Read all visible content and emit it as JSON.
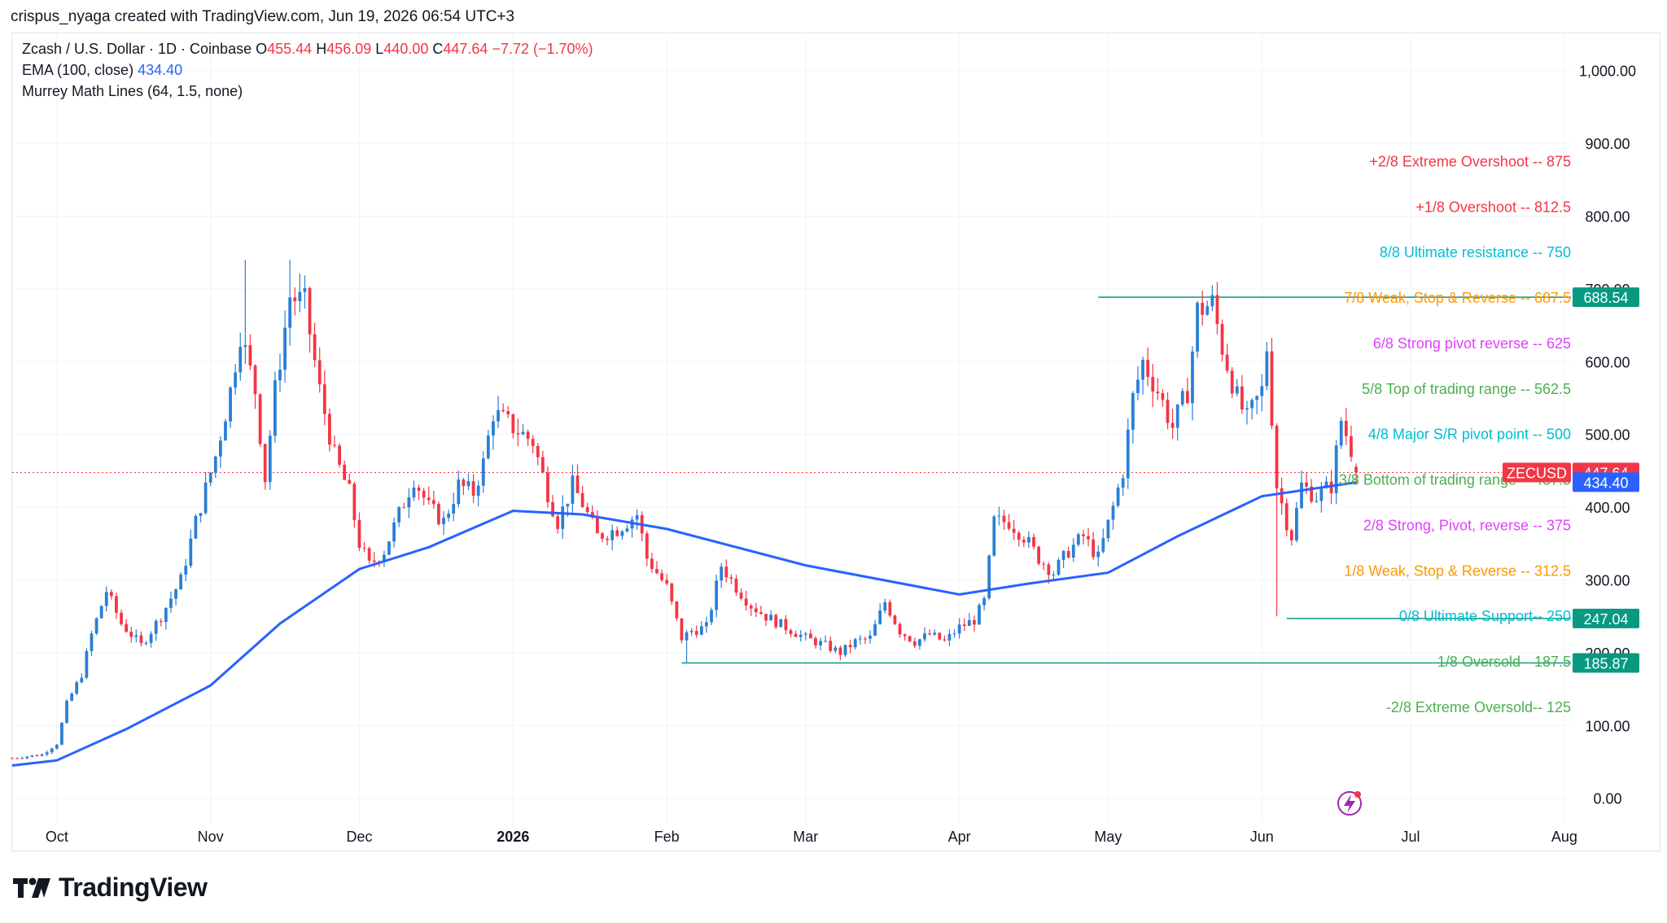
{
  "header": {
    "caption": "crispus_nyaga created with TradingView.com, Jun 19, 2026 06:54 UTC+3"
  },
  "legend": {
    "symbol": "Zcash / U.S. Dollar · 1D · Coinbase",
    "open_label": "O",
    "open": "455.44",
    "high_label": "H",
    "high": "456.09",
    "low_label": "L",
    "low": "440.00",
    "close_label": "C",
    "close": "447.64",
    "change": "−7.72 (−1.70%)",
    "ema_label": "EMA (100, close)",
    "ema_value": "434.40",
    "murrey_label": "Murrey Math Lines (64, 1.5, none)"
  },
  "brand": {
    "name": "TradingView"
  },
  "colors": {
    "up": "#2a7fd4",
    "down": "#f23645",
    "ema": "#2962ff",
    "teal": "#089981",
    "grid": "#f0f3fa",
    "axis_text": "#131722"
  },
  "chart_data": {
    "type": "candlestick",
    "title": "Zcash / U.S. Dollar · 1D · Coinbase",
    "ylim": [
      -35,
      1050
    ],
    "y_ticks": [
      0,
      100,
      200,
      300,
      400,
      500,
      600,
      700,
      800,
      900,
      1000
    ],
    "y_tick_labels": [
      "0.00",
      "100.00",
      "200.00",
      "300.00",
      "400.00",
      "500.00",
      "600.00",
      "700.00",
      "800.00",
      "900.00",
      "1,000.00"
    ],
    "x_labels": [
      {
        "date": "2025-10-01",
        "label": "Oct"
      },
      {
        "date": "2025-11-01",
        "label": "Nov"
      },
      {
        "date": "2025-12-01",
        "label": "Dec"
      },
      {
        "date": "2026-01-01",
        "label": "2026"
      },
      {
        "date": "2026-02-01",
        "label": "Feb"
      },
      {
        "date": "2026-03-01",
        "label": "Mar"
      },
      {
        "date": "2026-04-01",
        "label": "Apr"
      },
      {
        "date": "2026-05-01",
        "label": "May"
      },
      {
        "date": "2026-06-01",
        "label": "Jun"
      },
      {
        "date": "2026-07-01",
        "label": "Jul"
      },
      {
        "date": "2026-08-01",
        "label": "Aug"
      }
    ],
    "xlim": [
      "2025-09-22",
      "2026-08-02"
    ],
    "price_keypoints": [
      [
        "2025-09-22",
        55
      ],
      [
        "2025-09-28",
        60
      ],
      [
        "2025-10-01",
        75
      ],
      [
        "2025-10-03",
        130
      ],
      [
        "2025-10-06",
        170
      ],
      [
        "2025-10-08",
        225
      ],
      [
        "2025-10-11",
        285
      ],
      [
        "2025-10-14",
        240
      ],
      [
        "2025-10-18",
        210
      ],
      [
        "2025-10-22",
        250
      ],
      [
        "2025-10-26",
        300
      ],
      [
        "2025-10-29",
        380
      ],
      [
        "2025-11-02",
        470
      ],
      [
        "2025-11-05",
        560
      ],
      [
        "2025-11-07",
        640
      ],
      [
        "2025-11-10",
        560
      ],
      [
        "2025-11-12",
        440
      ],
      [
        "2025-11-14",
        560
      ],
      [
        "2025-11-17",
        690
      ],
      [
        "2025-11-20",
        680
      ],
      [
        "2025-11-23",
        560
      ],
      [
        "2025-11-26",
        470
      ],
      [
        "2025-11-29",
        420
      ],
      [
        "2025-12-01",
        350
      ],
      [
        "2025-12-03",
        320
      ],
      [
        "2025-12-06",
        340
      ],
      [
        "2025-12-09",
        390
      ],
      [
        "2025-12-12",
        440
      ],
      [
        "2025-12-15",
        400
      ],
      [
        "2025-12-18",
        380
      ],
      [
        "2025-12-21",
        430
      ],
      [
        "2025-12-24",
        420
      ],
      [
        "2025-12-26",
        460
      ],
      [
        "2025-12-28",
        530
      ],
      [
        "2026-01-01",
        510
      ],
      [
        "2026-01-05",
        490
      ],
      [
        "2026-01-08",
        420
      ],
      [
        "2026-01-10",
        380
      ],
      [
        "2026-01-13",
        430
      ],
      [
        "2026-01-15",
        405
      ],
      [
        "2026-01-18",
        360
      ],
      [
        "2026-01-22",
        370
      ],
      [
        "2026-01-26",
        390
      ],
      [
        "2026-01-28",
        330
      ],
      [
        "2026-02-01",
        290
      ],
      [
        "2026-02-04",
        220
      ],
      [
        "2026-02-06",
        230
      ],
      [
        "2026-02-09",
        235
      ],
      [
        "2026-02-12",
        320
      ],
      [
        "2026-02-15",
        290
      ],
      [
        "2026-02-18",
        265
      ],
      [
        "2026-02-21",
        250
      ],
      [
        "2026-02-25",
        235
      ],
      [
        "2026-03-01",
        220
      ],
      [
        "2026-03-05",
        210
      ],
      [
        "2026-03-08",
        200
      ],
      [
        "2026-03-11",
        215
      ],
      [
        "2026-03-14",
        220
      ],
      [
        "2026-03-17",
        270
      ],
      [
        "2026-03-20",
        230
      ],
      [
        "2026-03-23",
        215
      ],
      [
        "2026-03-26",
        225
      ],
      [
        "2026-03-29",
        215
      ],
      [
        "2026-04-01",
        235
      ],
      [
        "2026-04-04",
        245
      ],
      [
        "2026-04-06",
        270
      ],
      [
        "2026-04-08",
        380
      ],
      [
        "2026-04-11",
        380
      ],
      [
        "2026-04-14",
        360
      ],
      [
        "2026-04-17",
        330
      ],
      [
        "2026-04-20",
        310
      ],
      [
        "2026-04-23",
        340
      ],
      [
        "2026-04-26",
        360
      ],
      [
        "2026-04-29",
        330
      ],
      [
        "2026-05-02",
        400
      ],
      [
        "2026-05-04",
        450
      ],
      [
        "2026-05-06",
        550
      ],
      [
        "2026-05-08",
        600
      ],
      [
        "2026-05-11",
        560
      ],
      [
        "2026-05-14",
        510
      ],
      [
        "2026-05-17",
        560
      ],
      [
        "2026-05-19",
        670
      ],
      [
        "2026-05-22",
        680
      ],
      [
        "2026-05-24",
        620
      ],
      [
        "2026-05-27",
        550
      ],
      [
        "2026-05-29",
        520
      ],
      [
        "2026-06-01",
        560
      ],
      [
        "2026-06-02",
        620
      ],
      [
        "2026-06-04",
        430
      ],
      [
        "2026-06-06",
        380
      ],
      [
        "2026-06-07",
        360
      ],
      [
        "2026-06-09",
        430
      ],
      [
        "2026-06-12",
        415
      ],
      [
        "2026-06-15",
        430
      ],
      [
        "2026-06-17",
        520
      ],
      [
        "2026-06-19",
        480
      ],
      [
        "2026-06-20",
        448
      ]
    ],
    "wicks": [
      {
        "date": "2026-06-04",
        "low": 250
      },
      {
        "date": "2025-11-08",
        "high": 740
      },
      {
        "date": "2025-11-17",
        "high": 740
      },
      {
        "date": "2026-02-05",
        "low": 186
      }
    ],
    "last_date": "2026-06-20",
    "ema_keypoints": [
      [
        "2025-09-22",
        45
      ],
      [
        "2025-10-01",
        52
      ],
      [
        "2025-10-15",
        95
      ],
      [
        "2025-11-01",
        155
      ],
      [
        "2025-11-15",
        240
      ],
      [
        "2025-12-01",
        315
      ],
      [
        "2025-12-15",
        345
      ],
      [
        "2026-01-01",
        395
      ],
      [
        "2026-01-15",
        390
      ],
      [
        "2026-02-01",
        370
      ],
      [
        "2026-03-01",
        320
      ],
      [
        "2026-04-01",
        280
      ],
      [
        "2026-04-15",
        295
      ],
      [
        "2026-05-01",
        310
      ],
      [
        "2026-05-15",
        360
      ],
      [
        "2026-06-01",
        415
      ],
      [
        "2026-06-20",
        434
      ]
    ],
    "murrey_lines": [
      {
        "label": "+2/8 Extreme Overshoot --  875",
        "value": 875,
        "color": "#f23645"
      },
      {
        "label": "+1/8 Overshoot --  812.5",
        "value": 812.5,
        "color": "#f23645"
      },
      {
        "label": "8/8 Ultimate resistance --  750",
        "value": 750,
        "color": "#00bcd4"
      },
      {
        "label": "7/8 Weak, Stop & Reverse --  687.5",
        "value": 687.5,
        "color": "#ff9800"
      },
      {
        "label": "6/8 Strong pivot reverse --  625",
        "value": 625,
        "color": "#e040fb"
      },
      {
        "label": "5/8 Top of trading range --  562.5",
        "value": 562.5,
        "color": "#4caf50"
      },
      {
        "label": "4/8 Major S/R pivot point --  500",
        "value": 500,
        "color": "#00bcd4"
      },
      {
        "label": "3/8 Bottom of trading range --  437.5",
        "value": 437.5,
        "color": "#4caf50"
      },
      {
        "label": "2/8 Strong, Pivot, reverse --  375",
        "value": 375,
        "color": "#e040fb"
      },
      {
        "label": "1/8 Weak, Stop & Reverse --  312.5",
        "value": 312.5,
        "color": "#ff9800"
      },
      {
        "label": "0/8 Ultimate Support--  250",
        "value": 250,
        "color": "#00bcd4"
      },
      {
        "label": "-1/8 Oversold--  187.5",
        "value": 187.5,
        "color": "#4caf50"
      },
      {
        "label": "-2/8 Extreme Oversold--  125",
        "value": 125,
        "color": "#4caf50"
      }
    ],
    "horizontal_lines": [
      {
        "value": 688.54,
        "start": "2026-04-29"
      },
      {
        "value": 247.04,
        "start": "2026-06-06"
      },
      {
        "value": 185.87,
        "start": "2026-02-04"
      }
    ],
    "price_labels": [
      {
        "text": "688.54",
        "value": 688.54,
        "bg": "#089981"
      },
      {
        "text": "447.64",
        "value": 447.64,
        "bg": "#f23645",
        "tag": "ZECUSD"
      },
      {
        "text": "434.40",
        "value": 434.4,
        "bg": "#2962ff"
      },
      {
        "text": "247.04",
        "value": 247.04,
        "bg": "#089981"
      },
      {
        "text": "185.87",
        "value": 185.87,
        "bg": "#089981"
      }
    ],
    "current_price": 447.64,
    "grid": true
  }
}
